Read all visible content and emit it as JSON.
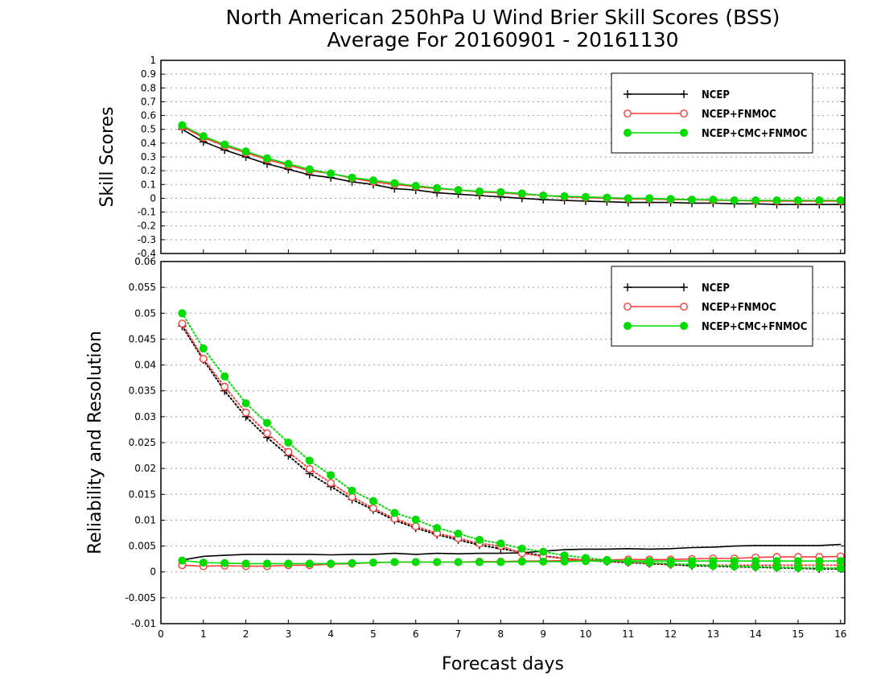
{
  "chart_data": {
    "type": "line",
    "title_line1": "North American 250hPa U Wind Brier Skill Scores (BSS)",
    "title_line2": "Average For 20160901 - 20161130",
    "xlabel": "Forecast days",
    "xlim": [
      0,
      16.1
    ],
    "xticks": [
      0,
      1,
      2,
      3,
      4,
      5,
      6,
      7,
      8,
      9,
      10,
      11,
      12,
      13,
      14,
      15,
      16
    ],
    "x": [
      0.5,
      1.0,
      1.5,
      2.0,
      2.5,
      3.0,
      3.5,
      4.0,
      4.5,
      5.0,
      5.5,
      6.0,
      6.5,
      7.0,
      7.5,
      8.0,
      8.5,
      9.0,
      9.5,
      10.0,
      10.5,
      11.0,
      11.5,
      12.0,
      12.5,
      13.0,
      13.5,
      14.0,
      14.5,
      15.0,
      15.5,
      16.0
    ],
    "colors": {
      "NCEP": "#000000",
      "NCEP+FNMOC": "#ff3c3c",
      "NCEP+CMC+FNMOC": "#00dc00",
      "grid": "#999999"
    },
    "panels": [
      {
        "ylabel": "Skill Scores",
        "ylim": [
          -0.4,
          1.0
        ],
        "yticks": [
          -0.4,
          -0.3,
          -0.2,
          -0.1,
          0,
          0.1,
          0.2,
          0.3,
          0.4,
          0.5,
          0.6,
          0.7,
          0.8,
          0.9,
          1
        ],
        "ytick_labels": [
          "-0.4",
          "-0.3",
          "-0.2",
          "-0.1",
          "0",
          "0.1",
          "0.2",
          "0.3",
          "0.4",
          "0.5",
          "0.6",
          "0.7",
          "0.8",
          "0.9",
          "1"
        ],
        "legend": [
          "NCEP",
          "NCEP+FNMOC",
          "NCEP+CMC+FNMOC"
        ],
        "series": [
          {
            "name": "NCEP",
            "style": "solid",
            "marker": "plus",
            "values": [
              0.5,
              0.41,
              0.35,
              0.3,
              0.25,
              0.21,
              0.17,
              0.15,
              0.12,
              0.1,
              0.07,
              0.06,
              0.04,
              0.03,
              0.02,
              0.01,
              0.0,
              -0.01,
              -0.015,
              -0.02,
              -0.025,
              -0.03,
              -0.03,
              -0.03,
              -0.035,
              -0.035,
              -0.04,
              -0.04,
              -0.045,
              -0.045,
              -0.045,
              -0.045
            ]
          },
          {
            "name": "NCEP+FNMOC",
            "style": "solid",
            "marker": "circle-open",
            "values": [
              0.52,
              0.44,
              0.38,
              0.33,
              0.28,
              0.24,
              0.2,
              0.18,
              0.145,
              0.12,
              0.1,
              0.085,
              0.07,
              0.06,
              0.045,
              0.04,
              0.03,
              0.02,
              0.01,
              0.005,
              0.0,
              -0.005,
              -0.005,
              -0.01,
              -0.01,
              -0.015,
              -0.015,
              -0.02,
              -0.02,
              -0.02,
              -0.02,
              -0.02
            ]
          },
          {
            "name": "NCEP+CMC+FNMOC",
            "style": "solid",
            "marker": "circle-filled",
            "values": [
              0.53,
              0.45,
              0.39,
              0.34,
              0.29,
              0.25,
              0.21,
              0.18,
              0.15,
              0.13,
              0.11,
              0.09,
              0.075,
              0.06,
              0.05,
              0.045,
              0.035,
              0.02,
              0.015,
              0.01,
              0.005,
              0.0,
              0.0,
              -0.005,
              -0.01,
              -0.01,
              -0.015,
              -0.015,
              -0.015,
              -0.015,
              -0.015,
              -0.015
            ]
          }
        ]
      },
      {
        "ylabel": "Reliability and Resolution",
        "ylim": [
          -0.01,
          0.06
        ],
        "yticks": [
          -0.01,
          -0.005,
          0,
          0.005,
          0.01,
          0.015,
          0.02,
          0.025,
          0.03,
          0.035,
          0.04,
          0.045,
          0.05,
          0.055,
          0.06
        ],
        "ytick_labels": [
          "-0.01",
          "-0.005",
          "0",
          "0.005",
          "0.01",
          "0.015",
          "0.02",
          "0.025",
          "0.03",
          "0.035",
          "0.04",
          "0.045",
          "0.05",
          "0.055",
          "0.06"
        ],
        "legend": [
          "NCEP",
          "NCEP+FNMOC",
          "NCEP+CMC+FNMOC"
        ],
        "series": [
          {
            "name": "NCEP",
            "style": "solid",
            "marker": "none",
            "values": [
              0.0023,
              0.003,
              0.0032,
              0.0034,
              0.0034,
              0.0034,
              0.0034,
              0.0033,
              0.0034,
              0.0034,
              0.0036,
              0.0034,
              0.0036,
              0.0035,
              0.0036,
              0.0036,
              0.0037,
              0.004,
              0.0043,
              0.0044,
              0.0044,
              0.0045,
              0.0044,
              0.0045,
              0.0047,
              0.0048,
              0.005,
              0.0051,
              0.0051,
              0.0051,
              0.0051,
              0.0053
            ]
          },
          {
            "name": "NCEP",
            "style": "dotted",
            "marker": "plus",
            "values": [
              0.0475,
              0.041,
              0.035,
              0.03,
              0.026,
              0.0225,
              0.019,
              0.0165,
              0.014,
              0.012,
              0.01,
              0.0085,
              0.0072,
              0.0062,
              0.0052,
              0.0045,
              0.0038,
              0.0031,
              0.0026,
              0.0022,
              0.002,
              0.0018,
              0.0016,
              0.0014,
              0.0012,
              0.0011,
              0.001,
              0.0009,
              0.0008,
              0.0007,
              0.0006,
              0.0006
            ]
          },
          {
            "name": "NCEP+FNMOC",
            "style": "solid",
            "marker": "circle-open",
            "values": [
              0.0013,
              0.0011,
              0.0012,
              0.0011,
              0.0011,
              0.0013,
              0.0013,
              0.0015,
              0.0016,
              0.0018,
              0.0019,
              0.0019,
              0.0019,
              0.0019,
              0.002,
              0.002,
              0.0021,
              0.0021,
              0.0022,
              0.0023,
              0.0023,
              0.0024,
              0.0024,
              0.0024,
              0.0025,
              0.0026,
              0.0026,
              0.0028,
              0.0029,
              0.0029,
              0.0029,
              0.003
            ]
          },
          {
            "name": "NCEP+FNMOC",
            "style": "dotted",
            "marker": "circle-open",
            "values": [
              0.048,
              0.0412,
              0.0358,
              0.0308,
              0.0268,
              0.0232,
              0.0199,
              0.0172,
              0.0145,
              0.0123,
              0.0103,
              0.0088,
              0.0075,
              0.0065,
              0.0055,
              0.005,
              0.0036,
              0.003,
              0.0026,
              0.0023,
              0.0021,
              0.0019,
              0.0017,
              0.0015,
              0.0014,
              0.0013,
              0.0013,
              0.0013,
              0.0013,
              0.0013,
              0.0013,
              0.0013
            ]
          },
          {
            "name": "NCEP+CMC+FNMOC",
            "style": "solid",
            "marker": "circle-filled",
            "values": [
              0.0022,
              0.0018,
              0.0017,
              0.0016,
              0.0016,
              0.0016,
              0.0016,
              0.0016,
              0.0017,
              0.0018,
              0.0019,
              0.0019,
              0.0019,
              0.0019,
              0.0019,
              0.0019,
              0.002,
              0.002,
              0.002,
              0.0021,
              0.0021,
              0.0021,
              0.0021,
              0.0021,
              0.0021,
              0.0021,
              0.0021,
              0.0021,
              0.0021,
              0.0021,
              0.0021,
              0.0021
            ]
          },
          {
            "name": "NCEP+CMC+FNMOC",
            "style": "dotted",
            "marker": "circle-filled",
            "values": [
              0.05,
              0.0432,
              0.0378,
              0.0326,
              0.0288,
              0.025,
              0.0215,
              0.0187,
              0.0157,
              0.0137,
              0.0114,
              0.0101,
              0.0085,
              0.0074,
              0.0062,
              0.0055,
              0.0045,
              0.0039,
              0.0032,
              0.0027,
              0.0023,
              0.002,
              0.0018,
              0.0016,
              0.0014,
              0.0012,
              0.0011,
              0.001,
              0.0009,
              0.0008,
              0.0008,
              0.0007
            ]
          }
        ]
      }
    ]
  }
}
